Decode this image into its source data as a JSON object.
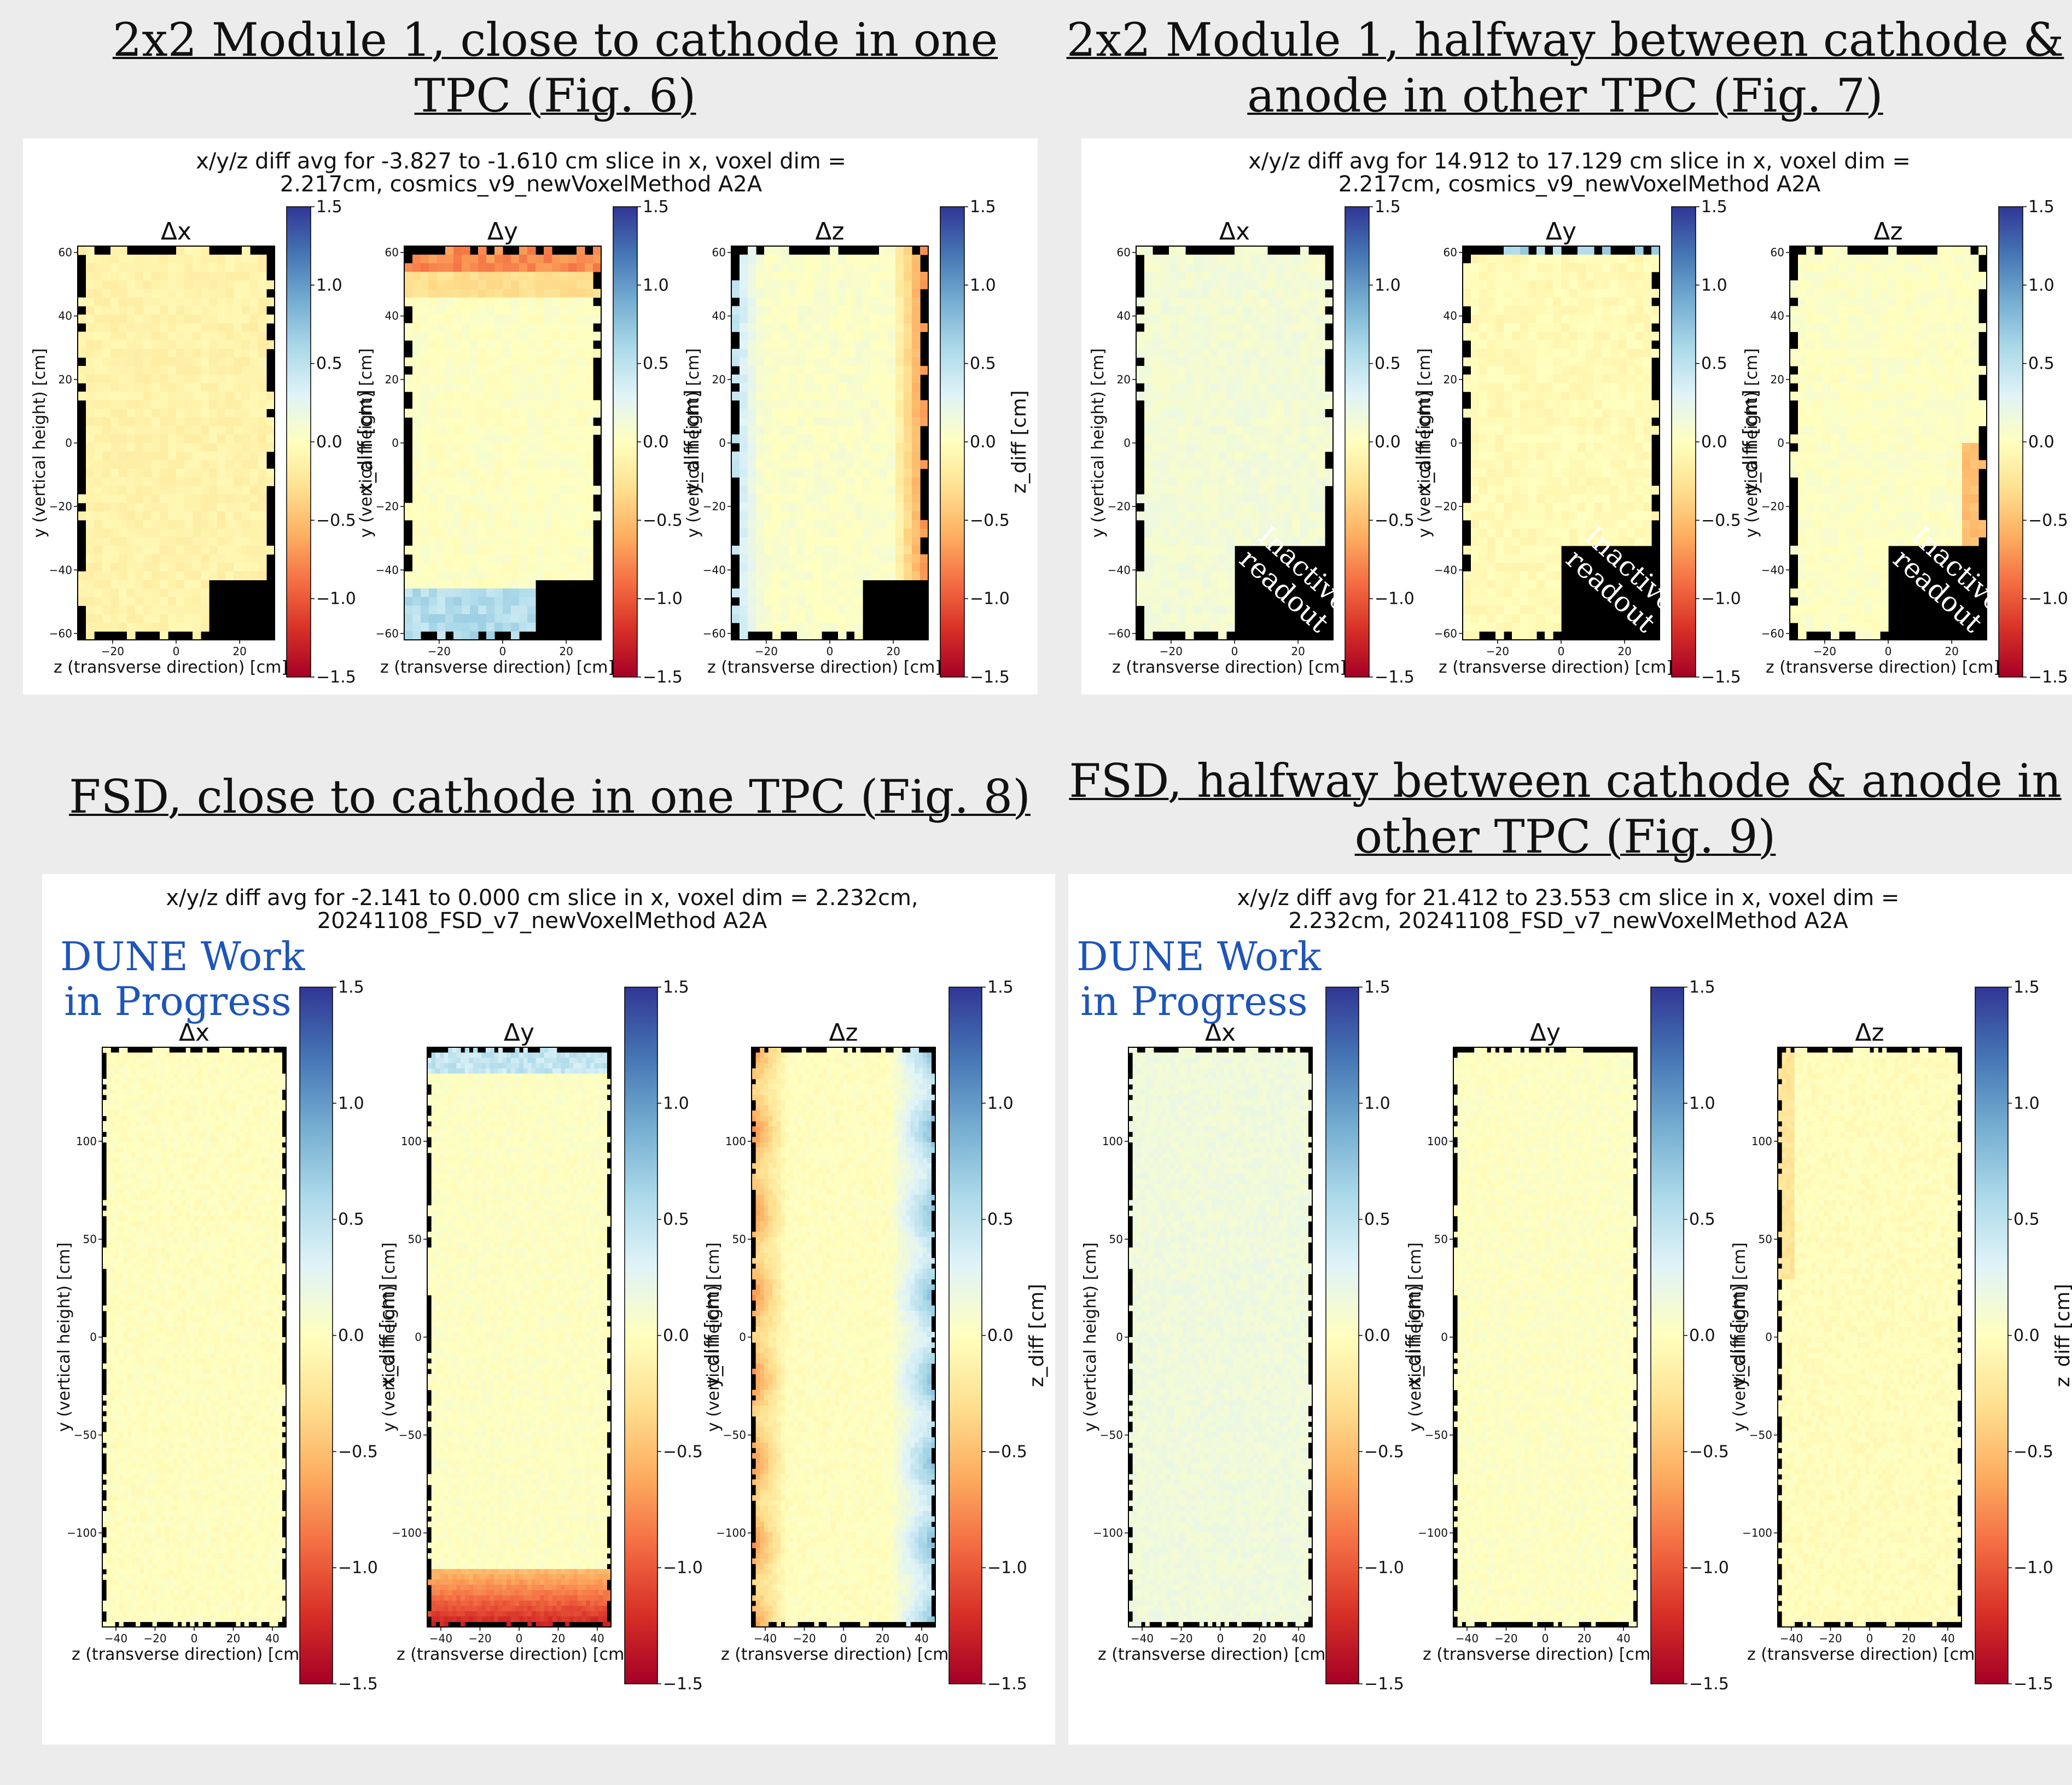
{
  "quadrants": [
    {
      "id": "q1",
      "heading_lines": [
        "2x2 Module 1, close to cathode in one",
        "TPC (Fig. 6)"
      ],
      "title_lines": [
        "x/y/z diff avg for -3.827 to -1.610 cm slice in x, voxel dim =",
        "2.217cm, cosmics_v9_newVoxelMethod A2A"
      ],
      "subplots": [
        {
          "label": "Δx",
          "cbar_label": "x_diff [cm]"
        },
        {
          "label": "Δy",
          "cbar_label": "y_diff [cm]"
        },
        {
          "label": "Δz",
          "cbar_label": "z_diff [cm]"
        }
      ],
      "xlabel": "z (transverse direction) [cm]",
      "ylabel": "y (vertical height) [cm]",
      "x_ticks": [
        "−20",
        "0",
        "20"
      ],
      "y_ticks": [
        "60",
        "40",
        "20",
        "0",
        "−20",
        "−40",
        "−60"
      ],
      "inactive_lines": []
    },
    {
      "id": "q2",
      "heading_lines": [
        "2x2 Module 1, halfway between cathode &",
        "anode in other TPC (Fig. 7)"
      ],
      "title_lines": [
        "x/y/z diff avg for 14.912 to 17.129 cm slice in x, voxel dim =",
        "2.217cm, cosmics_v9_newVoxelMethod A2A"
      ],
      "subplots": [
        {
          "label": "Δx",
          "cbar_label": "x_diff [cm]"
        },
        {
          "label": "Δy",
          "cbar_label": "y_diff [cm]"
        },
        {
          "label": "Δz",
          "cbar_label": "z_diff [cm]"
        }
      ],
      "xlabel": "z (transverse direction) [cm]",
      "ylabel": "y (vertical height) [cm]",
      "x_ticks": [
        "−20",
        "0",
        "20"
      ],
      "y_ticks": [
        "60",
        "40",
        "20",
        "0",
        "−20",
        "−40",
        "−60"
      ],
      "inactive_lines": [
        "Inactive",
        "readout"
      ]
    },
    {
      "id": "q3",
      "heading_lines": [
        "FSD, close to cathode in one TPC (Fig. 8)"
      ],
      "title_lines": [
        "x/y/z diff avg for -2.141 to 0.000 cm slice in x, voxel dim = 2.232cm,",
        "20241108_FSD_v7_newVoxelMethod A2A"
      ],
      "wip_lines": [
        "DUNE Work",
        "in Progress"
      ],
      "subplots": [
        {
          "label": "Δx",
          "cbar_label": "x_diff [cm]"
        },
        {
          "label": "Δy",
          "cbar_label": "y_diff [cm]"
        },
        {
          "label": "Δz",
          "cbar_label": "z_diff [cm]"
        }
      ],
      "xlabel": "z (transverse direction) [cm]",
      "ylabel": "y (vertical height) [cm]",
      "x_ticks": [
        "−40",
        "−20",
        "0",
        "20",
        "40"
      ],
      "y_ticks": [
        "100",
        "50",
        "0",
        "−50",
        "−100"
      ],
      "inactive_lines": []
    },
    {
      "id": "q4",
      "heading_lines": [
        "FSD, halfway between cathode & anode in",
        "other TPC (Fig. 9)"
      ],
      "title_lines": [
        "x/y/z diff avg for 21.412 to 23.553 cm slice in x, voxel dim =",
        "2.232cm, 20241108_FSD_v7_newVoxelMethod A2A"
      ],
      "wip_lines": [
        "DUNE Work",
        "in Progress"
      ],
      "subplots": [
        {
          "label": "Δx",
          "cbar_label": "x_diff [cm]"
        },
        {
          "label": "Δy",
          "cbar_label": "y_diff [cm]"
        },
        {
          "label": "Δz",
          "cbar_label": "z_diff [cm]"
        }
      ],
      "xlabel": "z (transverse direction) [cm]",
      "ylabel": "y (vertical height) [cm]",
      "x_ticks": [
        "−40",
        "−20",
        "0",
        "20",
        "40"
      ],
      "y_ticks": [
        "100",
        "50",
        "0",
        "−50",
        "−100"
      ],
      "inactive_lines": []
    }
  ],
  "colorbar": {
    "ticks": [
      "1.5",
      "1.0",
      "0.5",
      "0.0",
      "−0.5",
      "−1.0",
      "−1.5"
    ],
    "colors": [
      "#a50026",
      "#d73027",
      "#f46d43",
      "#fdae61",
      "#fee090",
      "#ffffbf",
      "#e0f3f8",
      "#abd9e9",
      "#74add1",
      "#4575b4",
      "#313695"
    ]
  },
  "chart_data": [
    {
      "type": "heatmap",
      "panel": "2x2 Module 1, close to cathode in one TPC (Fig. 6)",
      "title": "x/y/z diff avg for -3.827 to -1.610 cm slice in x, voxel dim = 2.217cm, cosmics_v9_newVoxelMethod A2A",
      "subplots": [
        "Δx",
        "Δy",
        "Δz"
      ],
      "xlabel": "z (transverse direction) [cm]",
      "ylabel": "y (vertical height) [cm]",
      "xlim": [
        -31,
        31
      ],
      "ylim": [
        -62,
        62
      ],
      "clim": [
        -1.5,
        1.5
      ],
      "colormap": "RdYlBu",
      "x_ticks": [
        -20,
        0,
        20
      ],
      "y_ticks": [
        -60,
        -40,
        -20,
        0,
        20,
        40,
        60
      ]
    },
    {
      "type": "heatmap",
      "panel": "2x2 Module 1, halfway between cathode & anode in other TPC (Fig. 7)",
      "title": "x/y/z diff avg for 14.912 to 17.129 cm slice in x, voxel dim = 2.217cm, cosmics_v9_newVoxelMethod A2A",
      "subplots": [
        "Δx",
        "Δy",
        "Δz"
      ],
      "xlabel": "z (transverse direction) [cm]",
      "ylabel": "y (vertical height) [cm]",
      "xlim": [
        -31,
        31
      ],
      "ylim": [
        -62,
        62
      ],
      "clim": [
        -1.5,
        1.5
      ],
      "colormap": "RdYlBu",
      "x_ticks": [
        -20,
        0,
        20
      ],
      "y_ticks": [
        -60,
        -40,
        -20,
        0,
        20,
        40,
        60
      ]
    },
    {
      "type": "heatmap",
      "panel": "FSD, close to cathode in one TPC (Fig. 8)",
      "title": "x/y/z diff avg for -2.141 to 0.000 cm slice in x, voxel dim = 2.232cm, 20241108_FSD_v7_newVoxelMethod A2A",
      "subplots": [
        "Δx",
        "Δy",
        "Δz"
      ],
      "xlabel": "z (transverse direction) [cm]",
      "ylabel": "y (vertical height) [cm]",
      "xlim": [
        -47,
        47
      ],
      "ylim": [
        -148,
        148
      ],
      "clim": [
        -1.5,
        1.5
      ],
      "colormap": "RdYlBu",
      "x_ticks": [
        -40,
        -20,
        0,
        20,
        40
      ],
      "y_ticks": [
        -100,
        -50,
        0,
        50,
        100
      ]
    },
    {
      "type": "heatmap",
      "panel": "FSD, halfway between cathode & anode in other TPC (Fig. 9)",
      "title": "x/y/z diff avg for 21.412 to 23.553 cm slice in x, voxel dim = 2.232cm, 20241108_FSD_v7_newVoxelMethod A2A",
      "subplots": [
        "Δx",
        "Δy",
        "Δz"
      ],
      "xlabel": "z (transverse direction) [cm]",
      "ylabel": "y (vertical height) [cm]",
      "xlim": [
        -47,
        47
      ],
      "ylim": [
        -148,
        148
      ],
      "clim": [
        -1.5,
        1.5
      ],
      "colormap": "RdYlBu",
      "x_ticks": [
        -40,
        -20,
        0,
        20,
        40
      ],
      "y_ticks": [
        -100,
        -50,
        0,
        50,
        100
      ]
    }
  ]
}
